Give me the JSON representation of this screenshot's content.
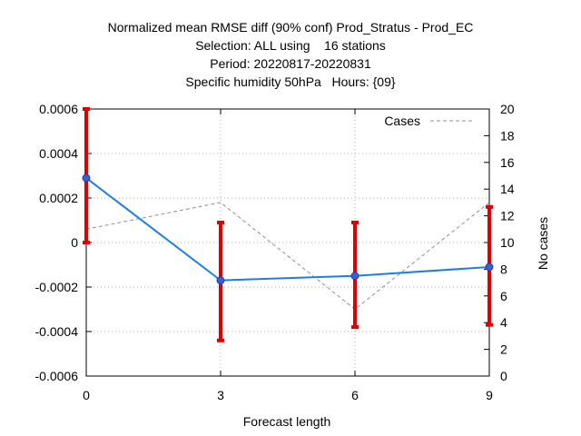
{
  "chart_data": {
    "type": "line",
    "title_lines": [
      "Normalized mean RMSE diff (90% conf) Prod_Stratus - Prod_EC",
      "Selection: ALL using    16 stations",
      "Period: 20220817-20220831",
      "Specific humidity 50hPa   Hours: {09}"
    ],
    "xlabel": "Forecast length",
    "ylabel": "",
    "y2label": "No cases",
    "x": [
      0,
      3,
      6,
      9
    ],
    "x_tick_labels": [
      "0",
      "3",
      "6",
      "9"
    ],
    "xlim": [
      0,
      9
    ],
    "ylim": [
      -0.0006,
      0.0006
    ],
    "y_tick_labels": [
      "-0.0006",
      "-0.0004",
      "-0.0002",
      "0",
      "0.0002",
      "0.0004",
      "0.0006"
    ],
    "y2lim": [
      0,
      20
    ],
    "y2_tick_labels": [
      "0",
      "2",
      "4",
      "6",
      "8",
      "10",
      "12",
      "14",
      "16",
      "18",
      "20"
    ],
    "grid": true,
    "legend_position": "top-right",
    "series": [
      {
        "values": [
          0.00029,
          -0.00017,
          -0.00015,
          -0.00011
        ],
        "error_low": [
          0.0,
          -0.00044,
          -0.00038,
          -0.00037
        ],
        "error_high": [
          0.0006,
          9e-05,
          9e-05,
          0.00016
        ],
        "color": "#1f7fe0",
        "error_color": "#e00000",
        "axis": "y"
      },
      {
        "name": "Cases",
        "values": [
          11,
          13,
          5,
          13
        ],
        "color": "#909090",
        "dashed": true,
        "axis": "y2"
      }
    ]
  }
}
